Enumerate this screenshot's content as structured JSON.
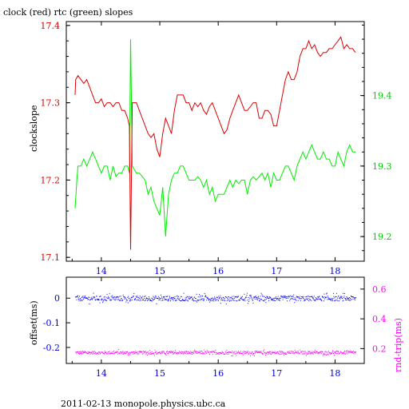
{
  "title": "clock (red) rtc (green) slopes",
  "footer": "2011-02-13 monopole.physics.ubc.ca",
  "chart_data": [
    {
      "type": "line",
      "title": "clock (red) rtc (green) slopes",
      "ylabel": "clockslope",
      "xlim": [
        13.4,
        18.5
      ],
      "ylim": [
        17.095,
        17.405
      ],
      "xticks": [
        14,
        15,
        16,
        17,
        18
      ],
      "yticks": [
        17.1,
        17.2,
        17.3,
        17.4
      ],
      "ytick_labels": [
        "17.1",
        "17.2",
        "17.3",
        "17.4"
      ],
      "y2lim": [
        19.165,
        19.505
      ],
      "y2ticks": [
        19.2,
        19.3,
        19.4
      ],
      "y2tick_labels": [
        "19.2",
        "19.3",
        "19.4"
      ],
      "colors": {
        "clock": "#dd0000",
        "rtc": "#00ee00"
      },
      "series": [
        {
          "axis": "left",
          "x": [
            13.55,
            13.56,
            13.6,
            13.65,
            13.7,
            13.75,
            13.8,
            13.85,
            13.9,
            13.95,
            14.0,
            14.05,
            14.1,
            14.15,
            14.2,
            14.25,
            14.3,
            14.35,
            14.4,
            14.45,
            14.48,
            14.5,
            14.53,
            14.6,
            14.65,
            14.7,
            14.75,
            14.8,
            14.85,
            14.9,
            14.95,
            15.0,
            15.05,
            15.1,
            15.15,
            15.2,
            15.25,
            15.3,
            15.35,
            15.4,
            15.45,
            15.5,
            15.55,
            15.6,
            15.65,
            15.7,
            15.75,
            15.8,
            15.85,
            15.9,
            15.95,
            16.0,
            16.05,
            16.1,
            16.15,
            16.2,
            16.25,
            16.3,
            16.35,
            16.4,
            16.45,
            16.5,
            16.55,
            16.6,
            16.65,
            16.7,
            16.75,
            16.8,
            16.85,
            16.9,
            16.95,
            17.0,
            17.05,
            17.1,
            17.15,
            17.2,
            17.25,
            17.3,
            17.35,
            17.4,
            17.45,
            17.5,
            17.55,
            17.6,
            17.65,
            17.7,
            17.75,
            17.8,
            17.85,
            17.9,
            17.95,
            18.0,
            18.05,
            18.1,
            18.15,
            18.2,
            18.25,
            18.3,
            18.35
          ],
          "y": [
            17.31,
            17.33,
            17.335,
            17.33,
            17.325,
            17.33,
            17.32,
            17.31,
            17.3,
            17.3,
            17.305,
            17.295,
            17.3,
            17.3,
            17.295,
            17.3,
            17.3,
            17.29,
            17.29,
            17.28,
            17.27,
            17.11,
            17.3,
            17.3,
            17.29,
            17.28,
            17.27,
            17.26,
            17.255,
            17.26,
            17.24,
            17.23,
            17.26,
            17.28,
            17.27,
            17.26,
            17.29,
            17.31,
            17.31,
            17.31,
            17.3,
            17.3,
            17.29,
            17.3,
            17.295,
            17.3,
            17.29,
            17.285,
            17.295,
            17.3,
            17.29,
            17.28,
            17.27,
            17.26,
            17.265,
            17.28,
            17.29,
            17.3,
            17.31,
            17.3,
            17.29,
            17.29,
            17.295,
            17.3,
            17.3,
            17.28,
            17.28,
            17.29,
            17.29,
            17.285,
            17.27,
            17.27,
            17.29,
            17.31,
            17.33,
            17.34,
            17.33,
            17.33,
            17.34,
            17.36,
            17.37,
            17.37,
            17.38,
            17.37,
            17.375,
            17.365,
            17.36,
            17.365,
            17.365,
            17.37,
            17.37,
            17.375,
            17.38,
            17.385,
            17.37,
            17.375,
            17.37,
            17.37,
            17.365
          ]
        },
        {
          "axis": "right",
          "x": [
            13.55,
            13.58,
            13.6,
            13.65,
            13.7,
            13.75,
            13.8,
            13.85,
            13.9,
            13.95,
            14.0,
            14.05,
            14.1,
            14.15,
            14.2,
            14.25,
            14.3,
            14.35,
            14.4,
            14.45,
            14.48,
            14.5,
            14.53,
            14.6,
            14.65,
            14.7,
            14.75,
            14.8,
            14.85,
            14.9,
            14.95,
            15.0,
            15.05,
            15.1,
            15.15,
            15.2,
            15.25,
            15.3,
            15.35,
            15.4,
            15.45,
            15.5,
            15.55,
            15.6,
            15.65,
            15.7,
            15.75,
            15.8,
            15.85,
            15.9,
            15.95,
            16.0,
            16.05,
            16.1,
            16.15,
            16.2,
            16.25,
            16.3,
            16.35,
            16.4,
            16.45,
            16.5,
            16.55,
            16.6,
            16.65,
            16.7,
            16.75,
            16.8,
            16.85,
            16.9,
            16.95,
            17.0,
            17.05,
            17.1,
            17.15,
            17.2,
            17.25,
            17.3,
            17.35,
            17.4,
            17.45,
            17.5,
            17.55,
            17.6,
            17.65,
            17.7,
            17.75,
            17.8,
            17.85,
            17.9,
            17.95,
            18.0,
            18.05,
            18.1,
            18.15,
            18.2,
            18.25,
            18.3,
            18.35
          ],
          "y": [
            19.24,
            19.28,
            19.3,
            19.3,
            19.31,
            19.3,
            19.31,
            19.32,
            19.31,
            19.3,
            19.29,
            19.3,
            19.3,
            19.28,
            19.3,
            19.285,
            19.29,
            19.29,
            19.3,
            19.3,
            19.29,
            19.48,
            19.3,
            19.29,
            19.29,
            19.285,
            19.28,
            19.26,
            19.27,
            19.25,
            19.24,
            19.23,
            19.27,
            19.2,
            19.26,
            19.28,
            19.29,
            19.29,
            19.3,
            19.3,
            19.29,
            19.28,
            19.28,
            19.28,
            19.285,
            19.28,
            19.27,
            19.28,
            19.26,
            19.27,
            19.25,
            19.26,
            19.26,
            19.26,
            19.27,
            19.28,
            19.27,
            19.28,
            19.275,
            19.28,
            19.28,
            19.26,
            19.28,
            19.285,
            19.28,
            19.285,
            19.29,
            19.28,
            19.29,
            19.27,
            19.29,
            19.28,
            19.28,
            19.29,
            19.3,
            19.3,
            19.29,
            19.28,
            19.3,
            19.31,
            19.32,
            19.31,
            19.32,
            19.33,
            19.32,
            19.31,
            19.31,
            19.32,
            19.31,
            19.31,
            19.3,
            19.3,
            19.32,
            19.31,
            19.3,
            19.32,
            19.33,
            19.32,
            19.32
          ]
        }
      ]
    },
    {
      "type": "scatter",
      "ylabel": "offset(ms)",
      "y2label": "rnd-trip(ms)",
      "xlim": [
        13.4,
        18.5
      ],
      "ylim": [
        -0.265,
        0.085
      ],
      "xticks": [
        14,
        15,
        16,
        17,
        18
      ],
      "yticks": [
        0,
        -0.1,
        -0.2
      ],
      "ytick_labels": [
        "0",
        "-0.1",
        "-0.2"
      ],
      "y2lim": [
        0.1,
        0.68
      ],
      "y2ticks": [
        0.2,
        0.4,
        0.6
      ],
      "y2tick_labels": [
        "0.2",
        "0.4",
        "0.6"
      ],
      "colors": {
        "offset": "#0000ff",
        "rtt": "#ff00ff"
      },
      "series": [
        {
          "axis": "left",
          "x": [
            13.55,
            18.35
          ],
          "y": [
            0.0,
            0.0
          ],
          "y_spread": 0.01
        },
        {
          "axis": "right",
          "x": [
            13.55,
            18.35
          ],
          "y": [
            0.175,
            0.175
          ],
          "y_spread": 0.01
        }
      ]
    }
  ]
}
